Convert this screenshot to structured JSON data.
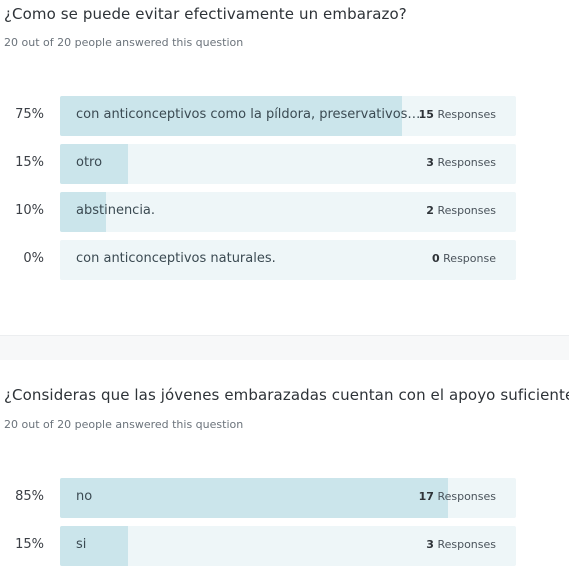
{
  "questions": [
    {
      "title": "¿Como se puede evitar efectivamente un embarazo?",
      "subtitle": "20 out of 20 people answered this question",
      "answers": [
        {
          "percent_label": "75%",
          "fraction": 0.75,
          "text": "con anticonceptivos como la píldora, preservativos, ...",
          "count": "15",
          "count_unit": "Responses"
        },
        {
          "percent_label": "15%",
          "fraction": 0.15,
          "text": "otro",
          "count": "3",
          "count_unit": "Responses"
        },
        {
          "percent_label": "10%",
          "fraction": 0.1,
          "text": "abstinencia.",
          "count": "2",
          "count_unit": "Responses"
        },
        {
          "percent_label": "0%",
          "fraction": 0.0,
          "text": "con anticonceptivos naturales.",
          "count": "0",
          "count_unit": "Response"
        }
      ]
    },
    {
      "title": "¿Consideras que las jóvenes embarazadas cuentan con el apoyo suficiente?",
      "subtitle": "20 out of 20 people answered this question",
      "answers": [
        {
          "percent_label": "85%",
          "fraction": 0.85,
          "text": "no",
          "count": "17",
          "count_unit": "Responses"
        },
        {
          "percent_label": "15%",
          "fraction": 0.15,
          "text": "si",
          "count": "3",
          "count_unit": "Responses"
        }
      ]
    }
  ],
  "colors": {
    "bar_track": "#eef6f8",
    "bar_fill": "#cbe5eb",
    "section_gap": "#f7f8f9"
  }
}
